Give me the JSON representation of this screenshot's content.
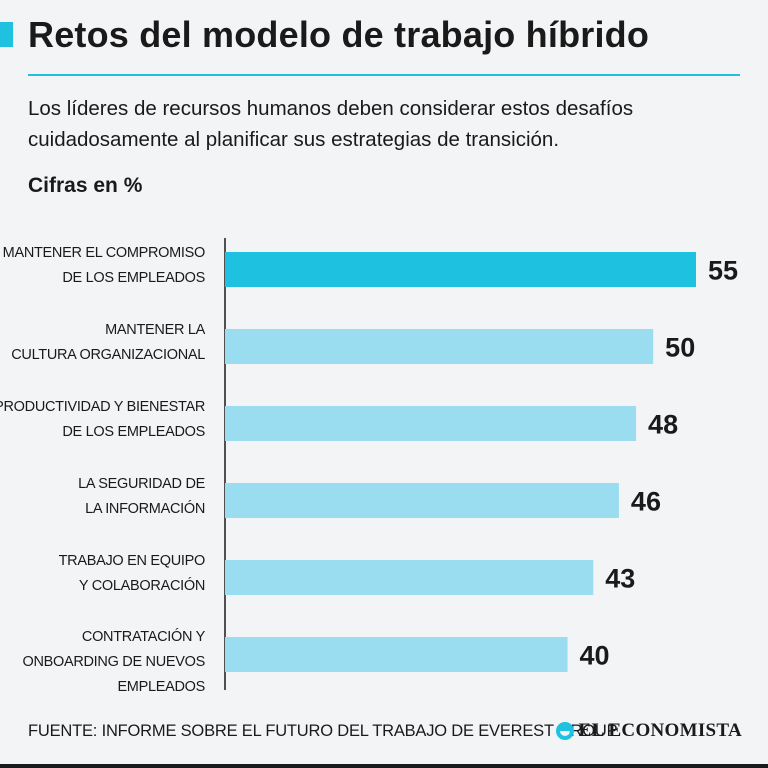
{
  "header": {
    "title": "Retos del modelo de trabajo híbrido",
    "subtitle": "Los líderes de recursos humanos deben considerar estos desafíos cuidadosamente al planificar sus estrategias de transición.",
    "units": "Cifras en %"
  },
  "footer": {
    "source": "FUENTE: INFORME SOBRE EL FUTURO DEL TRABAJO DE EVEREST GROUP",
    "logo_text": "EL ECONOMISTA"
  },
  "colors": {
    "accent": "#1ec1e0",
    "bar": "#9adcf0",
    "highlight": "#1ec1e0",
    "text": "#1a1a1a"
  },
  "chart_data": {
    "type": "bar",
    "orientation": "horizontal",
    "categories": [
      [
        "MANTENER EL COMPROMISO",
        "DE LOS EMPLEADOS"
      ],
      [
        "MANTENER LA",
        "CULTURA ORGANIZACIONAL"
      ],
      [
        "PRODUCTIVIDAD Y BIENESTAR",
        "DE LOS EMPLEADOS"
      ],
      [
        "LA SEGURIDAD DE",
        "LA INFORMACIÓN"
      ],
      [
        "TRABAJO EN EQUIPO",
        "Y COLABORACIÓN"
      ],
      [
        "CONTRATACIÓN Y",
        "ONBOARDING DE NUEVOS",
        "EMPLEADOS"
      ]
    ],
    "values": [
      55,
      50,
      48,
      46,
      43,
      40
    ],
    "highlight_index": 0,
    "title": "Retos del modelo de trabajo híbrido",
    "xlabel": "",
    "ylabel": "",
    "xlim": [
      0,
      55
    ],
    "grid": false,
    "legend": "none"
  }
}
